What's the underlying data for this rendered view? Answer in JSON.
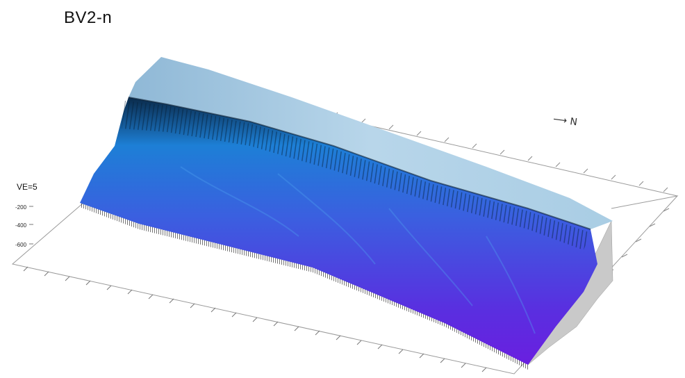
{
  "title": "BV2-n",
  "vertical_exaggeration": "VE=5",
  "depth_ticks": [
    "-200",
    "-400",
    "-600"
  ],
  "north_arrow_icon": "north-arrow-icon",
  "colors": {
    "shelf": "#a9cde4",
    "shelf_dark": "#7fa9c6",
    "slope_top": "#1d7fd6",
    "slope_mid": "#3b5fe0",
    "slope_deep": "#6a1fe0",
    "frame": "#888888",
    "side_wall": "#c8c8c8"
  }
}
